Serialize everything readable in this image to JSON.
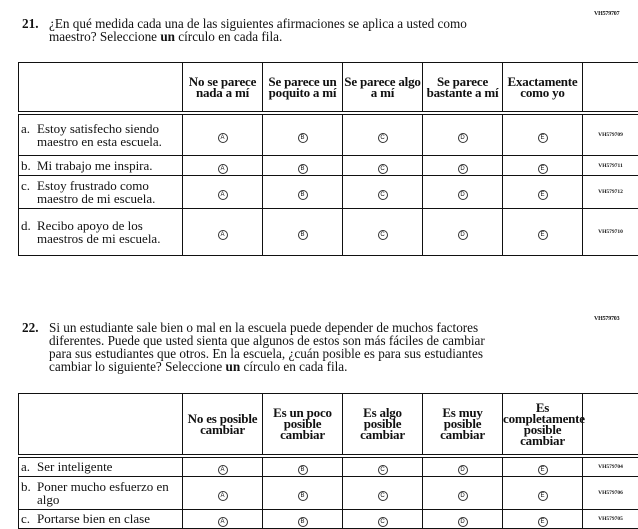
{
  "q21": {
    "code": "VH579707",
    "number": "21.",
    "lines": [
      "¿En qué medida cada una de las siguientes afirmaciones se aplica a usted como",
      "maestro? Seleccione ",
      "un",
      " círculo en cada fila."
    ],
    "columns": [
      "No se parece nada a mí",
      "Se parece un poquito a mí",
      "Se parece algo a mí",
      "Se parece bastante a mí",
      "Exactamente como yo"
    ],
    "rows": [
      {
        "letter": "a.",
        "text": "Estoy satisfecho siendo maestro en esta escuela.",
        "code": "VH579709"
      },
      {
        "letter": "b.",
        "text": "Mi trabajo me inspira.",
        "code": "VH579711"
      },
      {
        "letter": "c.",
        "text": "Estoy frustrado como maestro de mi escuela.",
        "code": "VH579712"
      },
      {
        "letter": "d.",
        "text": "Recibo apoyo de los maestros de mi escuela.",
        "code": "VH579710"
      }
    ]
  },
  "q22": {
    "code": "VH579703",
    "number": "22.",
    "lines": [
      "Si un estudiante sale bien o mal en la escuela puede depender de muchos factores",
      "diferentes. Puede que usted sienta que algunos de estos son más fáciles de cambiar",
      "para sus estudiantes que otros. En la escuela, ¿cuán posible es para sus estudiantes",
      "cambiar lo siguiente? Seleccione ",
      "un",
      " círculo en cada fila."
    ],
    "columns": [
      "No es posible cambiar",
      "Es un poco posible cambiar",
      "Es algo posible cambiar",
      "Es muy posible cambiar",
      "Es completamente posible cambiar"
    ],
    "rows": [
      {
        "letter": "a.",
        "text": "Ser inteligente",
        "code": "VH579704"
      },
      {
        "letter": "b.",
        "text": "Poner mucho esfuerzo en algo",
        "code": "VH579706"
      },
      {
        "letter": "c.",
        "text": "Portarse bien en clase",
        "code": "VH579705"
      }
    ]
  },
  "bubbles": [
    "A",
    "B",
    "C",
    "D",
    "E"
  ]
}
